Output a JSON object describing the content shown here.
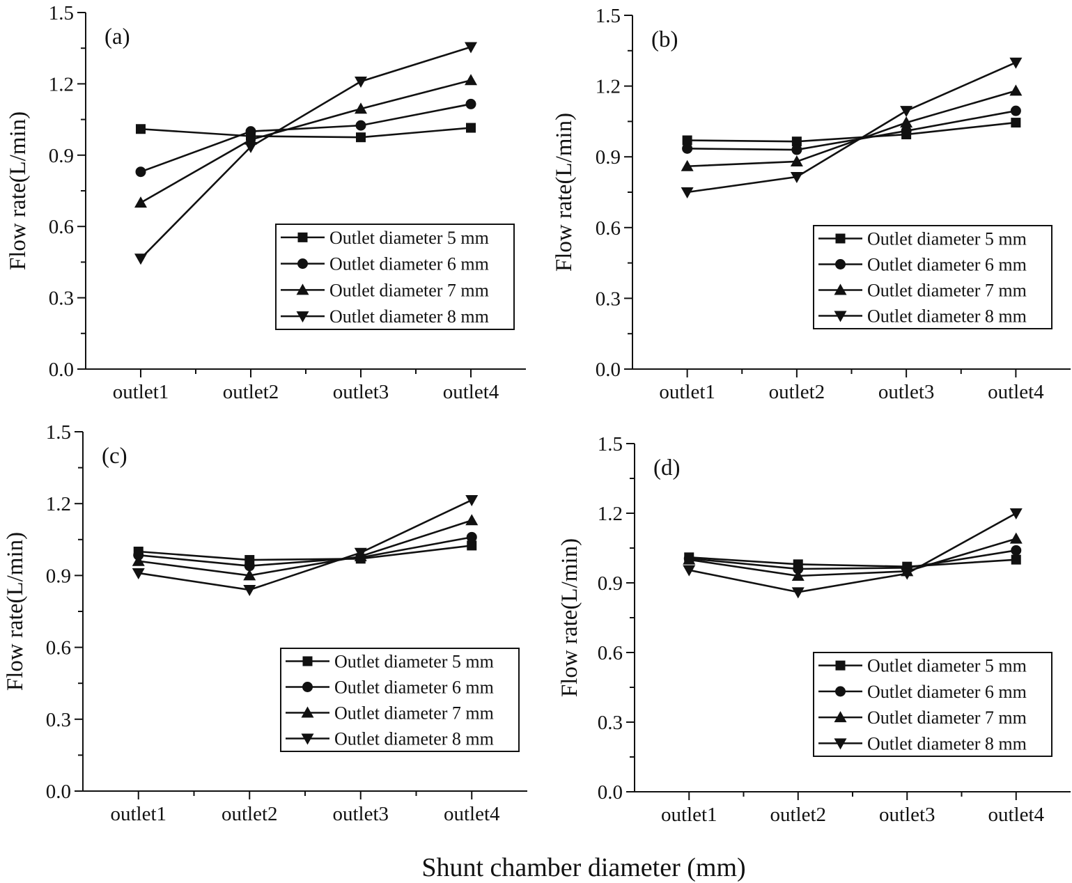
{
  "figure": {
    "xlabel": "Shunt chamber diameter (mm)"
  },
  "colors": {
    "ink": "#111111",
    "background": "#ffffff"
  },
  "chart_data": [
    {
      "type": "line",
      "panel_label": "(a)",
      "ylabel": "Flow rate(L/min)",
      "ylim": [
        0,
        1.5
      ],
      "yticks": [
        "0.0",
        "0.3",
        "0.6",
        "0.9",
        "1.2",
        "1.5"
      ],
      "categories": [
        "outlet1",
        "outlet2",
        "outlet3",
        "outlet4"
      ],
      "legend_position": "lower-right",
      "series": [
        {
          "name": "Outlet diameter 5 mm",
          "marker": "square",
          "values": [
            1.01,
            0.98,
            0.975,
            1.015
          ]
        },
        {
          "name": "Outlet diameter 6 mm",
          "marker": "circle",
          "values": [
            0.83,
            1.0,
            1.025,
            1.115
          ]
        },
        {
          "name": "Outlet diameter 7 mm",
          "marker": "triangle-up",
          "values": [
            0.7,
            0.965,
            1.095,
            1.215
          ]
        },
        {
          "name": "Outlet diameter 8 mm",
          "marker": "triangle-down",
          "values": [
            0.465,
            0.935,
            1.21,
            1.355
          ]
        }
      ]
    },
    {
      "type": "line",
      "panel_label": "(b)",
      "ylabel": "Flow rate(L/min)",
      "ylim": [
        0,
        1.5
      ],
      "yticks": [
        "0.0",
        "0.3",
        "0.6",
        "0.9",
        "1.2",
        "1.5"
      ],
      "categories": [
        "outlet1",
        "outlet2",
        "outlet3",
        "outlet4"
      ],
      "legend_position": "lower-right",
      "series": [
        {
          "name": "Outlet diameter 5 mm",
          "marker": "square",
          "values": [
            0.97,
            0.965,
            0.995,
            1.045
          ]
        },
        {
          "name": "Outlet diameter 6 mm",
          "marker": "circle",
          "values": [
            0.935,
            0.93,
            1.01,
            1.095
          ]
        },
        {
          "name": "Outlet diameter 7 mm",
          "marker": "triangle-up",
          "values": [
            0.86,
            0.88,
            1.045,
            1.18
          ]
        },
        {
          "name": "Outlet diameter 8 mm",
          "marker": "triangle-down",
          "values": [
            0.75,
            0.815,
            1.095,
            1.3
          ]
        }
      ]
    },
    {
      "type": "line",
      "panel_label": "(c)",
      "ylabel": "Flow rate(L/min)",
      "ylim": [
        0,
        1.5
      ],
      "yticks": [
        "0.0",
        "0.3",
        "0.6",
        "0.9",
        "1.2",
        "1.5"
      ],
      "categories": [
        "outlet1",
        "outlet2",
        "outlet3",
        "outlet4"
      ],
      "legend_position": "lower-right",
      "series": [
        {
          "name": "Outlet diameter 5 mm",
          "marker": "square",
          "values": [
            1.0,
            0.965,
            0.97,
            1.025
          ]
        },
        {
          "name": "Outlet diameter 6 mm",
          "marker": "circle",
          "values": [
            0.985,
            0.94,
            0.975,
            1.06
          ]
        },
        {
          "name": "Outlet diameter 7 mm",
          "marker": "triangle-up",
          "values": [
            0.96,
            0.9,
            0.98,
            1.13
          ]
        },
        {
          "name": "Outlet diameter 8 mm",
          "marker": "triangle-down",
          "values": [
            0.91,
            0.84,
            0.995,
            1.215
          ]
        }
      ]
    },
    {
      "type": "line",
      "panel_label": "(d)",
      "ylabel": "Flow rate(L/min)",
      "ylim": [
        0,
        1.5
      ],
      "yticks": [
        "0.0",
        "0.3",
        "0.6",
        "0.9",
        "1.2",
        "1.5"
      ],
      "categories": [
        "outlet1",
        "outlet2",
        "outlet3",
        "outlet4"
      ],
      "legend_position": "lower-right",
      "series": [
        {
          "name": "Outlet diameter 5 mm",
          "marker": "square",
          "values": [
            1.01,
            0.98,
            0.97,
            1.0
          ]
        },
        {
          "name": "Outlet diameter 6 mm",
          "marker": "circle",
          "values": [
            1.005,
            0.96,
            0.965,
            1.04
          ]
        },
        {
          "name": "Outlet diameter 7 mm",
          "marker": "triangle-up",
          "values": [
            1.0,
            0.93,
            0.95,
            1.09
          ]
        },
        {
          "name": "Outlet diameter 8 mm",
          "marker": "triangle-down",
          "values": [
            0.955,
            0.86,
            0.94,
            1.2
          ]
        }
      ]
    }
  ]
}
